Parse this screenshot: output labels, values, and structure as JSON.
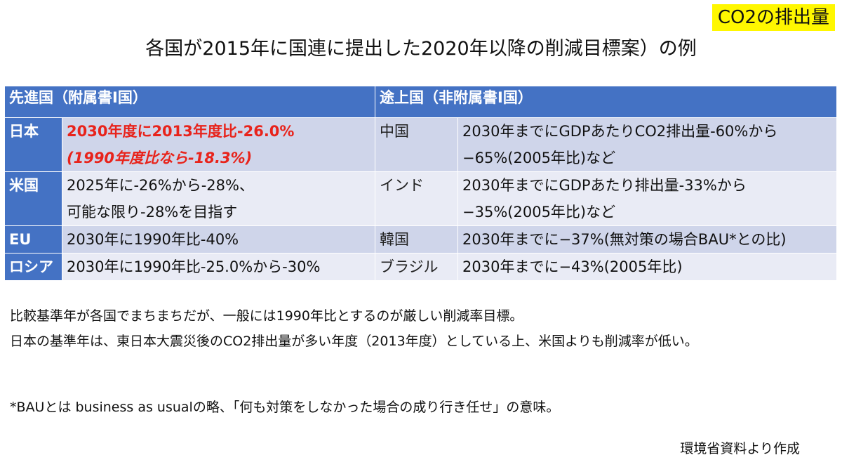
{
  "badge": "CO2の排出量",
  "title": "各国が2015年に国連に提出した2020年以降の削減目標案）の例",
  "table": {
    "header_developed": "先進国（附属書I国）",
    "header_developing": "途上国（非附属書I国）",
    "rows": [
      {
        "country": "日本",
        "target_line1": "2030年度に2013年度比-26.0%",
        "target_line2": "(1990年度比なら-18.3%)",
        "dev_country": "中国",
        "dev_target_line1": "2030年までにGDPあたりCO2排出量-60%から",
        "dev_target_line2": "−65%(2005年比)など"
      },
      {
        "country": "米国",
        "target_line1": "2025年に-26%から-28%、",
        "target_line2": "可能な限り-28%を目指す",
        "dev_country": "インド",
        "dev_target_line1": "2030年までにGDPあたり排出量-33%から",
        "dev_target_line2": "−35%(2005年比)など"
      },
      {
        "country": "EU",
        "target_line1": "2030年に1990年比-40%",
        "dev_country": "韓国",
        "dev_target_line1": "2030年までに−37%(無対策の場合BAU*との比)"
      },
      {
        "country": "ロシア",
        "target_line1": "2030年に1990年比-25.0%から-30%",
        "dev_country": "ブラジル",
        "dev_target_line1": "2030年までに−43%(2005年比)"
      }
    ]
  },
  "notes": {
    "line1": "比較基準年が各国でまちまちだが、一般には1990年比とするのが厳しい削減率目標。",
    "line2": "日本の基準年は、東日本大震災後のCO2排出量が多い年度（2013年度）としている上、米国よりも削減率が低い。"
  },
  "footnote": "*BAUとは business as usualの略、「何も対策をしなかった場合の成り行き任せ」の意味。",
  "source": "環境省資料より作成",
  "colors": {
    "header_blue": "#4472c4",
    "highlight_red": "#e8231b",
    "badge_yellow": "#fff700"
  }
}
